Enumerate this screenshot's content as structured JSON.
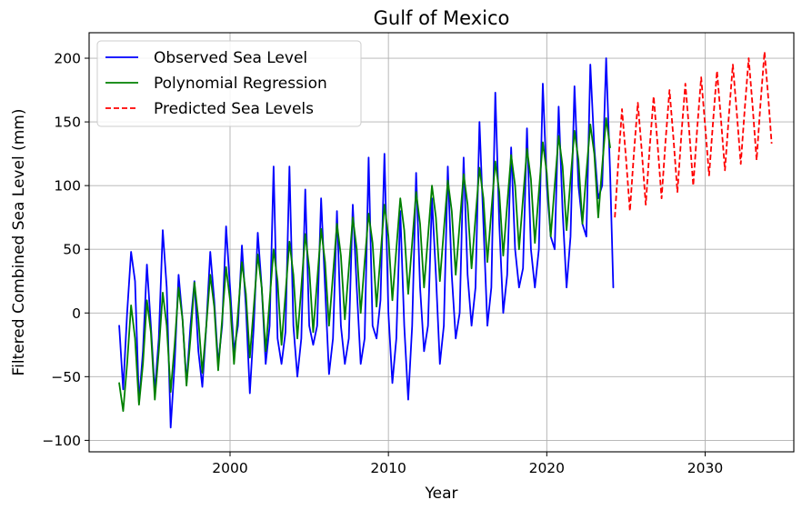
{
  "chart_data": {
    "type": "line",
    "title": "Gulf of Mexico",
    "xlabel": "Year",
    "ylabel": "Filtered Combined Sea Level (mm)",
    "xlim": [
      1991.1,
      2035.6
    ],
    "ylim": [
      -109,
      220
    ],
    "xticks": [
      2000,
      2010,
      2020,
      2030
    ],
    "yticks": [
      -100,
      -50,
      0,
      50,
      100,
      150,
      200
    ],
    "grid": true,
    "legend_position": "top-left",
    "series": [
      {
        "name": "Observed Sea Level",
        "color": "#0000ff",
        "style": "solid",
        "x": [
          1993.0,
          1993.25,
          1993.5,
          1993.75,
          1994.0,
          1994.25,
          1994.5,
          1994.75,
          1995.0,
          1995.25,
          1995.5,
          1995.75,
          1996.0,
          1996.25,
          1996.5,
          1996.75,
          1997.0,
          1997.25,
          1997.5,
          1997.75,
          1998.0,
          1998.25,
          1998.5,
          1998.75,
          1999.0,
          1999.25,
          1999.5,
          1999.75,
          2000.0,
          2000.25,
          2000.5,
          2000.75,
          2001.0,
          2001.25,
          2001.5,
          2001.75,
          2002.0,
          2002.25,
          2002.5,
          2002.75,
          2003.0,
          2003.25,
          2003.5,
          2003.75,
          2004.0,
          2004.25,
          2004.5,
          2004.75,
          2005.0,
          2005.25,
          2005.5,
          2005.75,
          2006.0,
          2006.25,
          2006.5,
          2006.75,
          2007.0,
          2007.25,
          2007.5,
          2007.75,
          2008.0,
          2008.25,
          2008.5,
          2008.75,
          2009.0,
          2009.25,
          2009.5,
          2009.75,
          2010.0,
          2010.25,
          2010.5,
          2010.75,
          2011.0,
          2011.25,
          2011.5,
          2011.75,
          2012.0,
          2012.25,
          2012.5,
          2012.75,
          2013.0,
          2013.25,
          2013.5,
          2013.75,
          2014.0,
          2014.25,
          2014.5,
          2014.75,
          2015.0,
          2015.25,
          2015.5,
          2015.75,
          2016.0,
          2016.25,
          2016.5,
          2016.75,
          2017.0,
          2017.25,
          2017.5,
          2017.75,
          2018.0,
          2018.25,
          2018.5,
          2018.75,
          2019.0,
          2019.25,
          2019.5,
          2019.75,
          2020.0,
          2020.25,
          2020.5,
          2020.75,
          2021.0,
          2021.25,
          2021.5,
          2021.75,
          2022.0,
          2022.25,
          2022.5,
          2022.75,
          2023.0,
          2023.25,
          2023.5,
          2023.75,
          2024.0,
          2024.2
        ],
        "values": [
          -10,
          -60,
          0,
          48,
          25,
          -70,
          -30,
          38,
          -10,
          -62,
          -20,
          65,
          20,
          -90,
          -40,
          30,
          -5,
          -55,
          -10,
          25,
          -30,
          -58,
          -10,
          48,
          10,
          -40,
          -10,
          68,
          20,
          -30,
          -10,
          53,
          5,
          -63,
          -10,
          63,
          20,
          -40,
          -10,
          115,
          -20,
          -40,
          -15,
          115,
          -10,
          -50,
          -20,
          97,
          -10,
          -25,
          -10,
          90,
          20,
          -48,
          -20,
          80,
          -10,
          -40,
          -20,
          85,
          20,
          -40,
          -20,
          122,
          -10,
          -20,
          10,
          125,
          0,
          -55,
          -20,
          80,
          -10,
          -68,
          -10,
          110,
          20,
          -30,
          -10,
          90,
          30,
          -40,
          -10,
          115,
          30,
          -20,
          0,
          122,
          30,
          -10,
          20,
          150,
          70,
          -10,
          20,
          173,
          70,
          0,
          30,
          130,
          50,
          20,
          35,
          145,
          50,
          20,
          50,
          180,
          100,
          60,
          50,
          162,
          80,
          20,
          60,
          178,
          100,
          70,
          60,
          195,
          130,
          90,
          100,
          200,
          110,
          20
        ]
      },
      {
        "name": "Polynomial Regression",
        "color": "#008000",
        "style": "solid",
        "x": [
          1993.0,
          1993.25,
          1993.5,
          1993.75,
          1994.0,
          1994.25,
          1994.5,
          1994.75,
          1995.0,
          1995.25,
          1995.5,
          1995.75,
          1996.0,
          1996.25,
          1996.5,
          1996.75,
          1997.0,
          1997.25,
          1997.5,
          1997.75,
          1998.0,
          1998.25,
          1998.5,
          1998.75,
          1999.0,
          1999.25,
          1999.5,
          1999.75,
          2000.0,
          2000.25,
          2000.5,
          2000.75,
          2001.0,
          2001.25,
          2001.5,
          2001.75,
          2002.0,
          2002.25,
          2002.5,
          2002.75,
          2003.0,
          2003.25,
          2003.5,
          2003.75,
          2004.0,
          2004.25,
          2004.5,
          2004.75,
          2005.0,
          2005.25,
          2005.5,
          2005.75,
          2006.0,
          2006.25,
          2006.5,
          2006.75,
          2007.0,
          2007.25,
          2007.5,
          2007.75,
          2008.0,
          2008.25,
          2008.5,
          2008.75,
          2009.0,
          2009.25,
          2009.5,
          2009.75,
          2010.0,
          2010.25,
          2010.5,
          2010.75,
          2011.0,
          2011.25,
          2011.5,
          2011.75,
          2012.0,
          2012.25,
          2012.5,
          2012.75,
          2013.0,
          2013.25,
          2013.5,
          2013.75,
          2014.0,
          2014.25,
          2014.5,
          2014.75,
          2015.0,
          2015.25,
          2015.5,
          2015.75,
          2016.0,
          2016.25,
          2016.5,
          2016.75,
          2017.0,
          2017.25,
          2017.5,
          2017.75,
          2018.0,
          2018.25,
          2018.5,
          2018.75,
          2019.0,
          2019.25,
          2019.5,
          2019.75,
          2020.0,
          2020.25,
          2020.5,
          2020.75,
          2021.0,
          2021.25,
          2021.5,
          2021.75,
          2022.0,
          2022.25,
          2022.5,
          2022.75,
          2023.0,
          2023.25,
          2023.5,
          2023.75,
          2024.0
        ],
        "values": [
          -55,
          -77,
          -40,
          6,
          -20,
          -72,
          -40,
          10,
          -15,
          -68,
          -30,
          16,
          -10,
          -62,
          -25,
          20,
          -5,
          -57,
          -20,
          24,
          -5,
          -47,
          -10,
          30,
          5,
          -45,
          -5,
          36,
          10,
          -40,
          0,
          40,
          15,
          -35,
          5,
          46,
          20,
          -30,
          10,
          50,
          25,
          -25,
          15,
          56,
          30,
          -20,
          20,
          62,
          35,
          -15,
          25,
          66,
          40,
          -10,
          30,
          70,
          45,
          -5,
          35,
          75,
          50,
          0,
          40,
          78,
          55,
          5,
          45,
          85,
          60,
          10,
          50,
          90,
          65,
          15,
          55,
          95,
          70,
          20,
          60,
          100,
          75,
          25,
          65,
          104,
          80,
          30,
          70,
          109,
          85,
          35,
          75,
          114,
          90,
          40,
          80,
          119,
          95,
          45,
          85,
          124,
          100,
          50,
          90,
          129,
          105,
          55,
          95,
          134,
          110,
          60,
          100,
          139,
          115,
          65,
          105,
          143,
          120,
          70,
          110,
          148,
          125,
          75,
          115,
          153,
          130
        ]
      },
      {
        "name": "Predicted Sea Levels",
        "color": "#ff0000",
        "style": "dashed",
        "x": [
          2024.3,
          2024.5,
          2024.75,
          2025.0,
          2025.25,
          2025.5,
          2025.75,
          2026.0,
          2026.25,
          2026.5,
          2026.75,
          2027.0,
          2027.25,
          2027.5,
          2027.75,
          2028.0,
          2028.25,
          2028.5,
          2028.75,
          2029.0,
          2029.25,
          2029.5,
          2029.75,
          2030.0,
          2030.25,
          2030.5,
          2030.75,
          2031.0,
          2031.25,
          2031.5,
          2031.75,
          2032.0,
          2032.25,
          2032.5,
          2032.75,
          2033.0,
          2033.25,
          2033.5,
          2033.75,
          2034.0,
          2034.2
        ],
        "values": [
          75,
          115,
          160,
          122,
          80,
          125,
          165,
          127,
          85,
          130,
          170,
          132,
          90,
          135,
          175,
          137,
          95,
          140,
          180,
          142,
          100,
          145,
          185,
          147,
          108,
          150,
          190,
          152,
          112,
          155,
          195,
          157,
          117,
          160,
          200,
          162,
          120,
          165,
          205,
          167,
          133
        ]
      }
    ]
  }
}
